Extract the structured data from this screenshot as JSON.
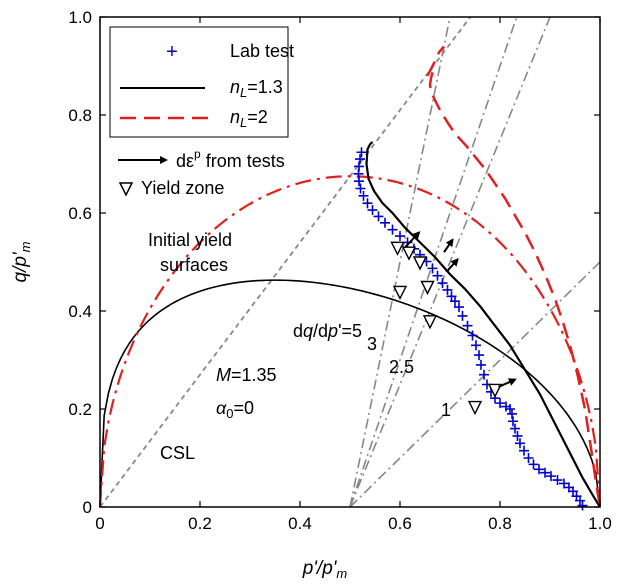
{
  "chart_data": {
    "type": "line",
    "xlabel": "p'/p'm",
    "ylabel": "q/p'm",
    "xlim": [
      0,
      1.0
    ],
    "ylim": [
      0,
      1.0
    ],
    "x_ticks": [
      "0",
      "0.2",
      "0.4",
      "0.6",
      "0.8",
      "1.0"
    ],
    "y_ticks": [
      "0",
      "0.2",
      "0.4",
      "0.6",
      "0.8",
      "1.0"
    ],
    "grid": false,
    "legend_position": "top-left",
    "legend": [
      {
        "label": "Lab test",
        "style": "plus-marker",
        "color": "#0000cc"
      },
      {
        "label": "nL=1.3",
        "style": "solid",
        "color": "#000000"
      },
      {
        "label": "nL=2",
        "style": "dashed",
        "color": "#e02020"
      },
      {
        "label": "dεp from tests",
        "style": "arrow",
        "color": "#000000"
      },
      {
        "label": "Yield zone",
        "style": "triangle-down",
        "color": "#000000"
      }
    ],
    "annotations": {
      "initial_yield": [
        "Initial yield",
        "surfaces"
      ],
      "model": [
        "M=1.35",
        "α0=0"
      ],
      "csl": "CSL",
      "slope_label": "dq/dp'=5",
      "slope_values": [
        "3",
        "2.5",
        "1"
      ]
    },
    "series": [
      {
        "name": "Lab test",
        "style": "markers",
        "color": "#0000cc",
        "points": [
          [
            0.523,
            0.724
          ],
          [
            0.52,
            0.71
          ],
          [
            0.518,
            0.695
          ],
          [
            0.517,
            0.68
          ],
          [
            0.518,
            0.665
          ],
          [
            0.521,
            0.65
          ],
          [
            0.527,
            0.635
          ],
          [
            0.535,
            0.62
          ],
          [
            0.545,
            0.606
          ],
          [
            0.557,
            0.593
          ],
          [
            0.57,
            0.58
          ],
          [
            0.585,
            0.566
          ],
          [
            0.6,
            0.553
          ],
          [
            0.615,
            0.54
          ],
          [
            0.628,
            0.527
          ],
          [
            0.64,
            0.515
          ],
          [
            0.653,
            0.501
          ],
          [
            0.665,
            0.487
          ],
          [
            0.675,
            0.472
          ],
          [
            0.685,
            0.457
          ],
          [
            0.695,
            0.443
          ],
          [
            0.703,
            0.43
          ],
          [
            0.71,
            0.42
          ],
          [
            0.718,
            0.408
          ],
          [
            0.725,
            0.39
          ],
          [
            0.735,
            0.37
          ],
          [
            0.745,
            0.35
          ],
          [
            0.752,
            0.33
          ],
          [
            0.758,
            0.31
          ],
          [
            0.762,
            0.29
          ],
          [
            0.768,
            0.27
          ],
          [
            0.774,
            0.25
          ],
          [
            0.782,
            0.235
          ],
          [
            0.79,
            0.222
          ],
          [
            0.8,
            0.212
          ],
          [
            0.812,
            0.205
          ],
          [
            0.82,
            0.2
          ],
          [
            0.824,
            0.19
          ],
          [
            0.826,
            0.175
          ],
          [
            0.83,
            0.16
          ],
          [
            0.835,
            0.145
          ],
          [
            0.84,
            0.13
          ],
          [
            0.848,
            0.115
          ],
          [
            0.857,
            0.1
          ],
          [
            0.867,
            0.087
          ],
          [
            0.878,
            0.077
          ],
          [
            0.89,
            0.07
          ],
          [
            0.902,
            0.063
          ],
          [
            0.915,
            0.055
          ],
          [
            0.928,
            0.048
          ],
          [
            0.938,
            0.04
          ],
          [
            0.946,
            0.032
          ],
          [
            0.953,
            0.022
          ],
          [
            0.96,
            0.013
          ],
          [
            0.965,
            0.003
          ]
        ]
      },
      {
        "name": "nL=1.3",
        "style": "solid",
        "color": "#000000",
        "points": [
          [
            0.545,
            0.745
          ],
          [
            0.54,
            0.74
          ],
          [
            0.535,
            0.73
          ],
          [
            0.533,
            0.7
          ],
          [
            0.537,
            0.67
          ],
          [
            0.548,
            0.645
          ],
          [
            0.565,
            0.62
          ],
          [
            0.585,
            0.6
          ],
          [
            0.61,
            0.57
          ],
          [
            0.64,
            0.54
          ],
          [
            0.67,
            0.51
          ],
          [
            0.7,
            0.475
          ],
          [
            0.73,
            0.445
          ],
          [
            0.76,
            0.41
          ],
          [
            0.79,
            0.37
          ],
          [
            0.82,
            0.33
          ],
          [
            0.85,
            0.28
          ],
          [
            0.88,
            0.23
          ],
          [
            0.91,
            0.17
          ],
          [
            0.94,
            0.11
          ],
          [
            0.965,
            0.06
          ],
          [
            0.985,
            0.025
          ],
          [
            1.0,
            0.0
          ]
        ]
      },
      {
        "name": "nL=2",
        "style": "dashed",
        "color": "#e02020",
        "points": [
          [
            0.665,
            0.887
          ],
          [
            0.662,
            0.875
          ],
          [
            0.66,
            0.862
          ],
          [
            0.662,
            0.848
          ],
          [
            0.67,
            0.83
          ],
          [
            0.68,
            0.81
          ],
          [
            0.695,
            0.785
          ],
          [
            0.71,
            0.762
          ],
          [
            0.73,
            0.74
          ],
          [
            0.75,
            0.715
          ],
          [
            0.77,
            0.69
          ],
          [
            0.79,
            0.66
          ],
          [
            0.81,
            0.63
          ],
          [
            0.83,
            0.595
          ],
          [
            0.85,
            0.56
          ],
          [
            0.87,
            0.52
          ],
          [
            0.89,
            0.475
          ],
          [
            0.91,
            0.425
          ],
          [
            0.925,
            0.38
          ],
          [
            0.94,
            0.33
          ],
          [
            0.955,
            0.27
          ],
          [
            0.97,
            0.2
          ],
          [
            0.982,
            0.12
          ],
          [
            0.992,
            0.05
          ],
          [
            1.0,
            0.0
          ]
        ]
      },
      {
        "name": "nL=2 upper",
        "style": "dashed",
        "color": "#e02020",
        "points": [
          [
            0.655,
            0.88
          ],
          [
            0.66,
            0.89
          ],
          [
            0.67,
            0.91
          ],
          [
            0.678,
            0.928
          ],
          [
            0.688,
            0.94
          ]
        ]
      }
    ],
    "yield_surfaces": [
      {
        "style": "solid",
        "color": "#000000",
        "center": 0.5,
        "half_width": 0.5,
        "peak_q": 0.463,
        "peak_p": 0.35
      },
      {
        "style": "dashed",
        "color": "#e02020",
        "center": 0.5,
        "half_width": 0.5,
        "peak_q": 0.675,
        "peak_p": 0.5
      }
    ],
    "csl_slope": 1.35,
    "slope_lines": [
      {
        "label": "5",
        "origin": [
          0.5,
          0.0
        ],
        "slope": 5
      },
      {
        "label": "3",
        "origin": [
          0.5,
          0.0
        ],
        "slope": 3
      },
      {
        "label": "2.5",
        "origin": [
          0.5,
          0.0
        ],
        "slope": 2.5
      },
      {
        "label": "1",
        "origin": [
          0.5,
          0.0
        ],
        "slope": 1
      }
    ],
    "yield_zone_points": [
      [
        0.595,
        0.53
      ],
      [
        0.618,
        0.52
      ],
      [
        0.64,
        0.5
      ],
      [
        0.6,
        0.44
      ],
      [
        0.655,
        0.45
      ],
      [
        0.66,
        0.38
      ],
      [
        0.79,
        0.24
      ],
      [
        0.75,
        0.205
      ]
    ],
    "arrows": [
      [
        [
          0.61,
          0.53
        ],
        [
          0.638,
          0.56
        ]
      ],
      [
        [
          0.688,
          0.52
        ],
        [
          0.705,
          0.545
        ]
      ],
      [
        [
          0.693,
          0.48
        ],
        [
          0.715,
          0.505
        ]
      ],
      [
        [
          0.797,
          0.245
        ],
        [
          0.83,
          0.26
        ]
      ]
    ]
  }
}
